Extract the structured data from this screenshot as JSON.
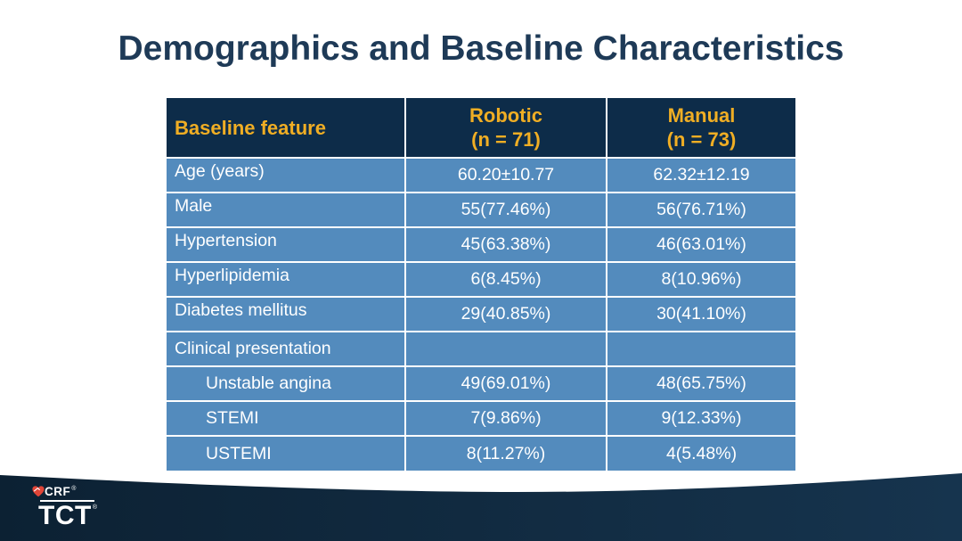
{
  "slide_title": "Demographics and Baseline Characteristics",
  "table": {
    "header": {
      "feature_label": "Baseline feature",
      "robotic_name": "Robotic",
      "robotic_n": "(n = 71)",
      "manual_name": "Manual",
      "manual_n": "(n = 73)"
    },
    "rows": [
      {
        "feature": "Age (years)",
        "robotic": "60.20±10.77",
        "manual": "62.32±12.19",
        "level": 0,
        "valign": "top"
      },
      {
        "feature": "Male",
        "robotic": "55(77.46%)",
        "manual": "56(76.71%)",
        "level": 0,
        "valign": "top"
      },
      {
        "feature": "Hypertension",
        "robotic": "45(63.38%)",
        "manual": "46(63.01%)",
        "level": 0,
        "valign": "top"
      },
      {
        "feature": "Hyperlipidemia",
        "robotic": "6(8.45%)",
        "manual": "8(10.96%)",
        "level": 0,
        "valign": "top"
      },
      {
        "feature": "Diabetes mellitus",
        "robotic": "29(40.85%)",
        "manual": "30(41.10%)",
        "level": 0,
        "valign": "top"
      },
      {
        "feature": "Clinical presentation",
        "robotic": "",
        "manual": "",
        "level": 0,
        "valign": "middle"
      },
      {
        "feature": "Unstable angina",
        "robotic": "49(69.01%)",
        "manual": "48(65.75%)",
        "level": 1,
        "valign": "middle"
      },
      {
        "feature": "STEMI",
        "robotic": "7(9.86%)",
        "manual": "9(12.33%)",
        "level": 1,
        "valign": "middle"
      },
      {
        "feature": "USTEMI",
        "robotic": "8(11.27%)",
        "manual": "4(5.48%)",
        "level": 1,
        "valign": "middle"
      }
    ]
  },
  "footer": {
    "crf_label": "CRF",
    "crf_reg": "®",
    "tct_label": "TCT",
    "tct_reg": "®"
  },
  "colors": {
    "title_color": "#1e3a57",
    "header_bg": "#0d2c49",
    "header_text": "#f0ae24",
    "row_bg": "#538bbd",
    "row_text": "#ffffff",
    "cell_border": "#ffffff",
    "footer_left": "#0c2133",
    "footer_right": "#16344e",
    "heart_red": "#e04537"
  }
}
